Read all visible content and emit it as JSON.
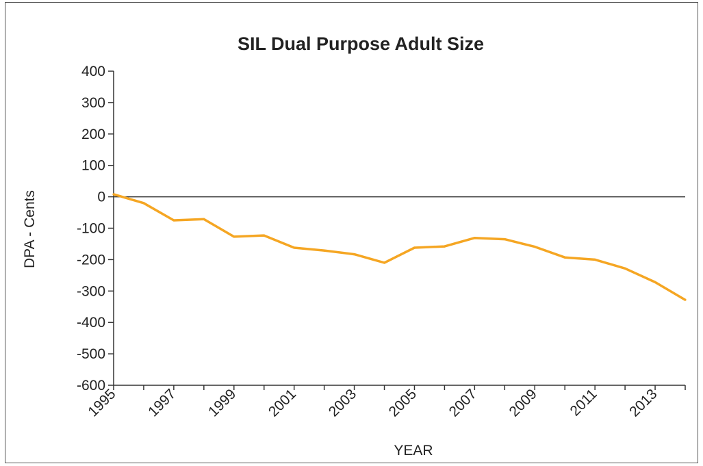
{
  "chart_data": {
    "type": "line",
    "title": "SIL Dual Purpose Adult Size",
    "xlabel": "YEAR",
    "ylabel": "DPA - Cents",
    "x": [
      1995,
      1996,
      1997,
      1998,
      1999,
      2000,
      2001,
      2002,
      2003,
      2004,
      2005,
      2006,
      2007,
      2008,
      2009,
      2010,
      2011,
      2012,
      2013,
      2014
    ],
    "xtick_labels": [
      "1995",
      "1997",
      "1999",
      "2001",
      "2003",
      "2005",
      "2007",
      "2009",
      "2011",
      "2013"
    ],
    "ylim": [
      -600,
      400
    ],
    "yticks": [
      400,
      300,
      200,
      100,
      0,
      -100,
      -200,
      -300,
      -400,
      -500,
      -600
    ],
    "ytick_labels": [
      "400",
      "300",
      "200",
      "100",
      "0",
      "-100",
      "-200",
      "-300",
      "-400",
      "-500",
      "-600"
    ],
    "series": [
      {
        "color": "#f5a623",
        "values": [
          8,
          -20,
          -75,
          -71,
          -127,
          -123,
          -162,
          -171,
          -183,
          -210,
          -162,
          -158,
          -131,
          -135,
          -159,
          -193,
          -200,
          -228,
          -272,
          -328
        ]
      }
    ],
    "grid": false,
    "legend": "none"
  }
}
